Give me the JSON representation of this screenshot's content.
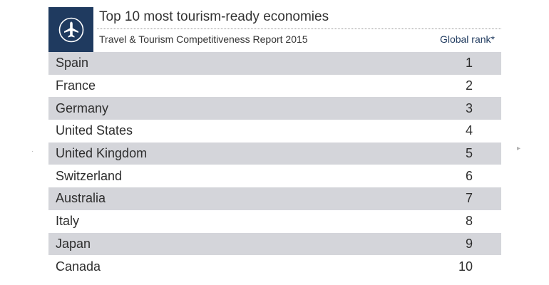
{
  "header": {
    "icon": "airplane-icon",
    "title": "Top 10 most tourism-ready economies",
    "subtitle": "Travel & Tourism Competitiveness Report 2015",
    "rank_label": "Global rank*"
  },
  "colors": {
    "icon_box": "#1f3a5f",
    "row_shade": "#d4d5da",
    "rank_header": "#1f3a5f"
  },
  "chart_data": {
    "type": "table",
    "title": "Top 10 most tourism-ready economies",
    "subtitle": "Travel & Tourism Competitiveness Report 2015",
    "columns": [
      "",
      "Global rank*"
    ],
    "rows": [
      {
        "country": "Spain",
        "rank": "1"
      },
      {
        "country": "France",
        "rank": "2"
      },
      {
        "country": "Germany",
        "rank": "3"
      },
      {
        "country": "United States",
        "rank": "4"
      },
      {
        "country": "United Kingdom",
        "rank": "5"
      },
      {
        "country": "Switzerland",
        "rank": "6"
      },
      {
        "country": "Australia",
        "rank": "7"
      },
      {
        "country": "Italy",
        "rank": "8"
      },
      {
        "country": "Japan",
        "rank": "9"
      },
      {
        "country": "Canada",
        "rank": "10"
      }
    ]
  }
}
